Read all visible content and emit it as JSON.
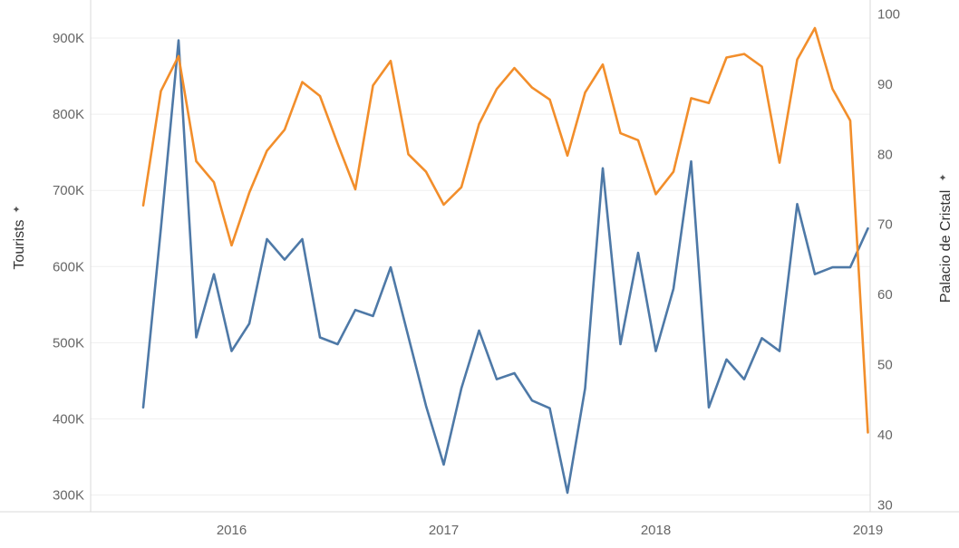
{
  "chart_data": {
    "type": "line",
    "x_ticks": [
      "2016",
      "2017",
      "2018",
      "2019"
    ],
    "left_axis": {
      "label": "Tourists",
      "ticks": [
        "300K",
        "400K",
        "500K",
        "600K",
        "700K",
        "800K",
        "900K"
      ],
      "tick_values": [
        300000,
        400000,
        500000,
        600000,
        700000,
        800000,
        900000
      ],
      "range": [
        278000,
        950000
      ]
    },
    "right_axis": {
      "label": "Palacio de Cristal",
      "ticks": [
        "30",
        "40",
        "50",
        "60",
        "70",
        "80",
        "90",
        "100"
      ],
      "tick_values": [
        30,
        40,
        50,
        60,
        70,
        80,
        90,
        100
      ],
      "range": [
        29,
        102
      ]
    },
    "x": [
      "2015-08",
      "2015-09",
      "2015-10",
      "2015-11",
      "2015-12",
      "2016-01",
      "2016-02",
      "2016-03",
      "2016-04",
      "2016-05",
      "2016-06",
      "2016-07",
      "2016-08",
      "2016-09",
      "2016-10",
      "2016-11",
      "2016-12",
      "2017-01",
      "2017-02",
      "2017-03",
      "2017-04",
      "2017-05",
      "2017-06",
      "2017-07",
      "2017-08",
      "2017-09",
      "2017-10",
      "2017-11",
      "2017-12",
      "2018-01",
      "2018-02",
      "2018-03",
      "2018-04",
      "2018-05",
      "2018-06",
      "2018-07",
      "2018-08",
      "2018-09",
      "2018-10",
      "2018-11",
      "2018-12",
      "2019-01"
    ],
    "series": [
      {
        "name": "Tourists",
        "axis": "left",
        "color": "#4e79a7",
        "values": [
          415000,
          650000,
          897000,
          507000,
          590000,
          489000,
          525000,
          636000,
          609000,
          636000,
          507000,
          498000,
          543000,
          535000,
          599000,
          508000,
          417000,
          340000,
          440000,
          516000,
          452000,
          460000,
          424000,
          414000,
          303000,
          440000,
          729000,
          498000,
          618000,
          489000,
          571000,
          738000,
          415000,
          478000,
          452000,
          506000,
          489000,
          682000,
          590000,
          599000,
          599000,
          650000
        ]
      },
      {
        "name": "Palacio de Cristal",
        "axis": "right",
        "color": "#f28e2b",
        "values": [
          72.7,
          89.0,
          94.0,
          79.0,
          76.0,
          67.0,
          74.5,
          80.5,
          83.5,
          90.3,
          88.3,
          81.5,
          75.0,
          89.8,
          93.3,
          80.0,
          77.5,
          72.8,
          75.3,
          84.3,
          89.3,
          92.3,
          89.5,
          87.8,
          79.8,
          88.8,
          92.8,
          83.0,
          82.0,
          74.3,
          77.5,
          88.0,
          87.3,
          93.8,
          94.3,
          92.5,
          78.8,
          93.5,
          98.0,
          89.3,
          84.8,
          40.3
        ]
      }
    ],
    "grid": true
  }
}
